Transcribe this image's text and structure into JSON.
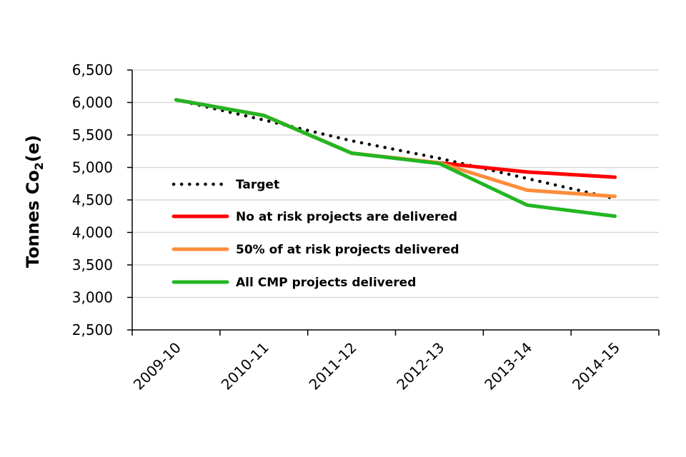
{
  "chart_data": {
    "type": "line",
    "title": "",
    "xlabel": "",
    "ylabel": "Tonnes Co2(e)",
    "ylabel_parts": {
      "main": "Tonnes Co",
      "subscript": "2",
      "suffix": "(e)"
    },
    "categories": [
      "2009-10",
      "2010-11",
      "2011-12",
      "2012-13",
      "2013-14",
      "2014-15"
    ],
    "ylim": [
      2500,
      6500
    ],
    "yticks": [
      2500,
      3000,
      3500,
      4000,
      4500,
      5000,
      5500,
      6000,
      6500
    ],
    "ytick_labels": [
      "2,500",
      "3,000",
      "3,500",
      "4,000",
      "4,500",
      "5,000",
      "5,500",
      "6,000",
      "6,500"
    ],
    "grid": true,
    "legend_position": "center-left inside plot",
    "series": [
      {
        "name": "Target",
        "style": "dotted",
        "color": "#000000",
        "values": [
          6040,
          5730,
          5410,
          5140,
          4830,
          4520
        ]
      },
      {
        "name": "No at risk projects are delivered",
        "style": "solid",
        "color": "#ff0000",
        "values": [
          6040,
          5800,
          5220,
          5070,
          4930,
          4850
        ]
      },
      {
        "name": "50% of at risk projects delivered",
        "style": "solid",
        "color": "#ff8c3a",
        "values": [
          6040,
          5800,
          5220,
          5070,
          4650,
          4555
        ]
      },
      {
        "name": "All CMP projects delivered",
        "style": "solid",
        "color": "#22b622",
        "values": [
          6040,
          5800,
          5220,
          5060,
          4420,
          4250
        ]
      }
    ]
  }
}
